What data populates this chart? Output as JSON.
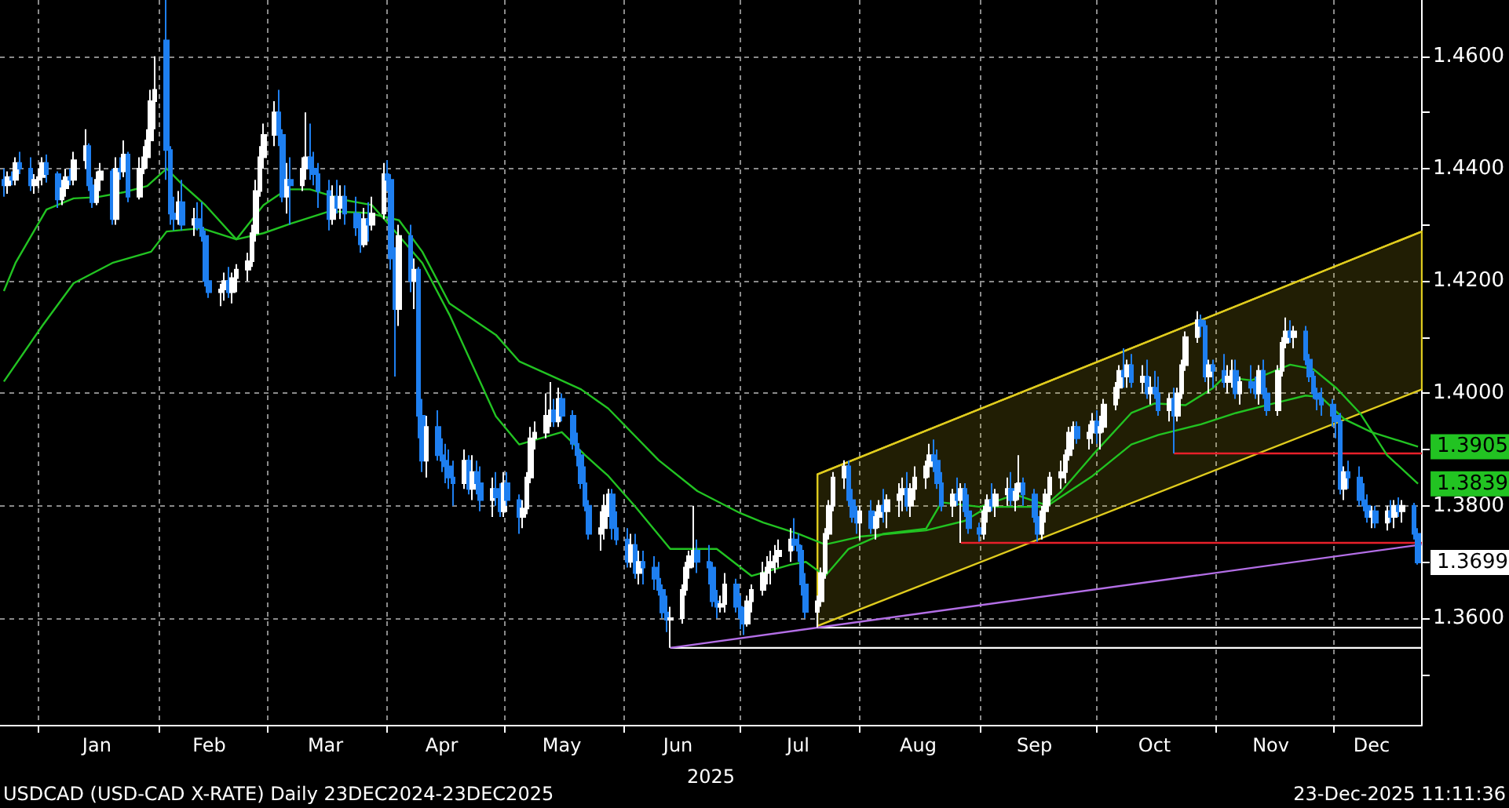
{
  "chart_data": {
    "type": "candlestick",
    "xlabel": "2025",
    "xlim": [
      "2024-12-22",
      "2025-12-24"
    ],
    "ylim": [
      1.341,
      1.47
    ],
    "grid": true,
    "marker": "none",
    "line_style": "solid",
    "xticks": [
      {
        "value": "2025-01-01",
        "label": null
      },
      {
        "value": "2025-02-01",
        "label": null
      },
      {
        "value": "2025-03-01",
        "label": null
      },
      {
        "value": "2025-04-01",
        "label": null
      },
      {
        "value": "2025-05-01",
        "label": null
      },
      {
        "value": "2025-06-01",
        "label": null
      },
      {
        "value": "2025-07-01",
        "label": null
      },
      {
        "value": "2025-08-01",
        "label": null
      },
      {
        "value": "2025-09-01",
        "label": null
      },
      {
        "value": "2025-10-01",
        "label": null
      },
      {
        "value": "2025-11-01",
        "label": null
      },
      {
        "value": "2025-12-01",
        "label": null
      },
      {
        "value": "2025-01-16",
        "label": "Jan"
      },
      {
        "value": "2025-02-14",
        "label": "Feb"
      },
      {
        "value": "2025-03-16",
        "label": "Mar"
      },
      {
        "value": "2025-04-15",
        "label": "Apr"
      },
      {
        "value": "2025-05-16",
        "label": "May"
      },
      {
        "value": "2025-06-15",
        "label": "Jun"
      },
      {
        "value": "2025-07-16",
        "label": "Jul"
      },
      {
        "value": "2025-08-16",
        "label": "Aug"
      },
      {
        "value": "2025-09-15",
        "label": "Sep"
      },
      {
        "value": "2025-10-16",
        "label": "Oct"
      },
      {
        "value": "2025-11-15",
        "label": "Nov"
      },
      {
        "value": "2025-12-11",
        "label": "Dec"
      }
    ],
    "yticks": [
      {
        "value": 1.36,
        "label": "1.3600"
      },
      {
        "value": 1.38,
        "label": "1.3800"
      },
      {
        "value": 1.4,
        "label": "1.4000"
      },
      {
        "value": 1.42,
        "label": "1.4200"
      },
      {
        "value": 1.44,
        "label": "1.4400"
      },
      {
        "value": 1.46,
        "label": "1.4600"
      },
      {
        "value": 1.35,
        "label": null
      },
      {
        "value": 1.37,
        "label": null
      },
      {
        "value": 1.39,
        "label": null
      },
      {
        "value": 1.41,
        "label": null
      },
      {
        "value": 1.43,
        "label": null
      },
      {
        "value": 1.45,
        "label": null
      }
    ],
    "annotations": [
      "USDCAD (USD-CAD X-RATE) Daily 23DEC2024-23DEC2025",
      "23-Dec-2025 11:11:36",
      {
        "text": "1.3699",
        "x": "2025-12-23",
        "y": 1.3699
      }
    ],
    "x": [
      "2024-12-23",
      "2024-12-24",
      "2024-12-25",
      "2024-12-26",
      "2024-12-27",
      "2024-12-30",
      "2024-12-31",
      "2025-01-01",
      "2025-01-02",
      "2025-01-03",
      "2025-01-06",
      "2025-01-07",
      "2025-01-08",
      "2025-01-09",
      "2025-01-10",
      "2025-01-13",
      "2025-01-14",
      "2025-01-15",
      "2025-01-16",
      "2025-01-17",
      "2025-01-20",
      "2025-01-21",
      "2025-01-22",
      "2025-01-23",
      "2025-01-24",
      "2025-01-27",
      "2025-01-28",
      "2025-01-29",
      "2025-01-30",
      "2025-01-31",
      "2025-02-03",
      "2025-02-04",
      "2025-02-05",
      "2025-02-06",
      "2025-02-07",
      "2025-02-10",
      "2025-02-11",
      "2025-02-12",
      "2025-02-13",
      "2025-02-14",
      "2025-02-17",
      "2025-02-18",
      "2025-02-19",
      "2025-02-20",
      "2025-02-21",
      "2025-02-24",
      "2025-02-25",
      "2025-02-26",
      "2025-02-27",
      "2025-02-28",
      "2025-03-03",
      "2025-03-04",
      "2025-03-05",
      "2025-03-06",
      "2025-03-07",
      "2025-03-10",
      "2025-03-11",
      "2025-03-12",
      "2025-03-13",
      "2025-03-14",
      "2025-03-17",
      "2025-03-18",
      "2025-03-19",
      "2025-03-20",
      "2025-03-21",
      "2025-03-24",
      "2025-03-25",
      "2025-03-26",
      "2025-03-27",
      "2025-03-28",
      "2025-03-31",
      "2025-04-01",
      "2025-04-02",
      "2025-04-03",
      "2025-04-04",
      "2025-04-07",
      "2025-04-08",
      "2025-04-09",
      "2025-04-10",
      "2025-04-11",
      "2025-04-14",
      "2025-04-15",
      "2025-04-16",
      "2025-04-17",
      "2025-04-18",
      "2025-04-21",
      "2025-04-22",
      "2025-04-23",
      "2025-04-24",
      "2025-04-25",
      "2025-04-28",
      "2025-04-29",
      "2025-04-30",
      "2025-05-01",
      "2025-05-02",
      "2025-05-05",
      "2025-05-06",
      "2025-05-07",
      "2025-05-08",
      "2025-05-09",
      "2025-05-12",
      "2025-05-13",
      "2025-05-14",
      "2025-05-15",
      "2025-05-16",
      "2025-05-19",
      "2025-05-20",
      "2025-05-21",
      "2025-05-22",
      "2025-05-23",
      "2025-05-26",
      "2025-05-27",
      "2025-05-28",
      "2025-05-29",
      "2025-05-30",
      "2025-06-02",
      "2025-06-03",
      "2025-06-04",
      "2025-06-05",
      "2025-06-06",
      "2025-06-09",
      "2025-06-10",
      "2025-06-11",
      "2025-06-12",
      "2025-06-13",
      "2025-06-16",
      "2025-06-17",
      "2025-06-18",
      "2025-06-19",
      "2025-06-20",
      "2025-06-23",
      "2025-06-24",
      "2025-06-25",
      "2025-06-26",
      "2025-06-27",
      "2025-06-30",
      "2025-07-01",
      "2025-07-02",
      "2025-07-03",
      "2025-07-04",
      "2025-07-07",
      "2025-07-08",
      "2025-07-09",
      "2025-07-10",
      "2025-07-11",
      "2025-07-14",
      "2025-07-15",
      "2025-07-16",
      "2025-07-17",
      "2025-07-18",
      "2025-07-21",
      "2025-07-22",
      "2025-07-23",
      "2025-07-24",
      "2025-07-25",
      "2025-07-28",
      "2025-07-29",
      "2025-07-30",
      "2025-07-31",
      "2025-08-01",
      "2025-08-04",
      "2025-08-05",
      "2025-08-06",
      "2025-08-07",
      "2025-08-08",
      "2025-08-11",
      "2025-08-12",
      "2025-08-13",
      "2025-08-14",
      "2025-08-15",
      "2025-08-18",
      "2025-08-19",
      "2025-08-20",
      "2025-08-21",
      "2025-08-22",
      "2025-08-25",
      "2025-08-26",
      "2025-08-27",
      "2025-08-28",
      "2025-08-29",
      "2025-09-01",
      "2025-09-02",
      "2025-09-03",
      "2025-09-04",
      "2025-09-05",
      "2025-09-08",
      "2025-09-09",
      "2025-09-10",
      "2025-09-11",
      "2025-09-12",
      "2025-09-15",
      "2025-09-16",
      "2025-09-17",
      "2025-09-18",
      "2025-09-19",
      "2025-09-22",
      "2025-09-23",
      "2025-09-24",
      "2025-09-25",
      "2025-09-26",
      "2025-09-29",
      "2025-09-30",
      "2025-10-01",
      "2025-10-02",
      "2025-10-03",
      "2025-10-06",
      "2025-10-07",
      "2025-10-08",
      "2025-10-09",
      "2025-10-10",
      "2025-10-13",
      "2025-10-14",
      "2025-10-15",
      "2025-10-16",
      "2025-10-17",
      "2025-10-20",
      "2025-10-21",
      "2025-10-22",
      "2025-10-23",
      "2025-10-24",
      "2025-10-27",
      "2025-10-28",
      "2025-10-29",
      "2025-10-30",
      "2025-10-31",
      "2025-11-03",
      "2025-11-04",
      "2025-11-05",
      "2025-11-06",
      "2025-11-07",
      "2025-11-10",
      "2025-11-11",
      "2025-11-12",
      "2025-11-13",
      "2025-11-14",
      "2025-11-17",
      "2025-11-18",
      "2025-11-19",
      "2025-11-20",
      "2025-11-21",
      "2025-11-24",
      "2025-11-25",
      "2025-11-26",
      "2025-11-27",
      "2025-11-28",
      "2025-12-01",
      "2025-12-02",
      "2025-12-03",
      "2025-12-04",
      "2025-12-05",
      "2025-12-08",
      "2025-12-09",
      "2025-12-10",
      "2025-12-11",
      "2025-12-12",
      "2025-12-15",
      "2025-12-16",
      "2025-12-17",
      "2025-12-18",
      "2025-12-19",
      "2025-12-22",
      "2025-12-23"
    ],
    "ohlc": [
      [
        1.438,
        1.44,
        1.435,
        1.437
      ],
      [
        1.437,
        1.4395,
        1.4355,
        1.4385
      ],
      [
        1.4385,
        1.4395,
        1.437,
        1.438
      ],
      [
        1.438,
        1.442,
        1.437,
        1.441
      ],
      [
        1.441,
        1.443,
        1.439,
        1.44
      ],
      [
        1.44,
        1.442,
        1.436,
        1.437
      ],
      [
        1.437,
        1.439,
        1.4355,
        1.438
      ],
      [
        1.438,
        1.44,
        1.4365,
        1.4385
      ],
      [
        1.4385,
        1.442,
        1.437,
        1.441
      ],
      [
        1.441,
        1.4425,
        1.4375,
        1.439
      ],
      [
        1.439,
        1.4395,
        1.433,
        1.4345
      ],
      [
        1.4345,
        1.438,
        1.4335,
        1.4365
      ],
      [
        1.4365,
        1.44,
        1.435,
        1.4385
      ],
      [
        1.4385,
        1.44,
        1.437,
        1.438
      ],
      [
        1.438,
        1.443,
        1.437,
        1.4415
      ],
      [
        1.4415,
        1.447,
        1.44,
        1.444
      ],
      [
        1.444,
        1.4445,
        1.436,
        1.437
      ],
      [
        1.437,
        1.4385,
        1.433,
        1.434
      ],
      [
        1.434,
        1.4395,
        1.4335,
        1.438
      ],
      [
        1.438,
        1.441,
        1.436,
        1.4395
      ],
      [
        1.4395,
        1.44,
        1.43,
        1.431
      ],
      [
        1.431,
        1.442,
        1.43,
        1.44
      ],
      [
        1.44,
        1.442,
        1.438,
        1.4395
      ],
      [
        1.4395,
        1.445,
        1.4385,
        1.4425
      ],
      [
        1.4425,
        1.443,
        1.434,
        1.435
      ],
      [
        1.435,
        1.442,
        1.4345,
        1.44
      ],
      [
        1.44,
        1.444,
        1.439,
        1.442
      ],
      [
        1.442,
        1.447,
        1.44,
        1.445
      ],
      [
        1.445,
        1.454,
        1.443,
        1.452
      ],
      [
        1.452,
        1.46,
        1.447,
        1.454
      ],
      [
        1.4628,
        1.47,
        1.438,
        1.4433
      ],
      [
        1.4433,
        1.444,
        1.43,
        1.432
      ],
      [
        1.432,
        1.435,
        1.429,
        1.431
      ],
      [
        1.431,
        1.436,
        1.43,
        1.434
      ],
      [
        1.434,
        1.438,
        1.429,
        1.43
      ],
      [
        1.43,
        1.433,
        1.428,
        1.431
      ],
      [
        1.431,
        1.434,
        1.429,
        1.4295
      ],
      [
        1.4295,
        1.434,
        1.427,
        1.428
      ],
      [
        1.428,
        1.429,
        1.419,
        1.42
      ],
      [
        1.42,
        1.422,
        1.417,
        1.418
      ],
      [
        1.418,
        1.4195,
        1.4155,
        1.4185
      ],
      [
        1.4185,
        1.4215,
        1.4165,
        1.42
      ],
      [
        1.42,
        1.4225,
        1.417,
        1.418
      ],
      [
        1.418,
        1.4215,
        1.416,
        1.4205
      ],
      [
        1.4205,
        1.423,
        1.418,
        1.422
      ],
      [
        1.422,
        1.425,
        1.42,
        1.4235
      ],
      [
        1.4235,
        1.43,
        1.4225,
        1.4285
      ],
      [
        1.4285,
        1.438,
        1.427,
        1.436
      ],
      [
        1.436,
        1.444,
        1.435,
        1.442
      ],
      [
        1.442,
        1.448,
        1.44,
        1.446
      ],
      [
        1.446,
        1.452,
        1.444,
        1.45
      ],
      [
        1.45,
        1.454,
        1.444,
        1.446
      ],
      [
        1.446,
        1.447,
        1.434,
        1.435
      ],
      [
        1.435,
        1.441,
        1.432,
        1.438
      ],
      [
        1.438,
        1.442,
        1.43,
        1.437
      ],
      [
        1.437,
        1.442,
        1.436,
        1.44
      ],
      [
        1.44,
        1.45,
        1.438,
        1.442
      ],
      [
        1.442,
        1.448,
        1.438,
        1.44
      ],
      [
        1.44,
        1.443,
        1.437,
        1.439
      ],
      [
        1.439,
        1.441,
        1.433,
        1.436
      ],
      [
        1.436,
        1.438,
        1.429,
        1.431
      ],
      [
        1.431,
        1.437,
        1.43,
        1.435
      ],
      [
        1.435,
        1.438,
        1.432,
        1.433
      ],
      [
        1.433,
        1.437,
        1.431,
        1.435
      ],
      [
        1.435,
        1.437,
        1.43,
        1.432
      ],
      [
        1.432,
        1.435,
        1.428,
        1.4295
      ],
      [
        1.4295,
        1.432,
        1.425,
        1.4265
      ],
      [
        1.4265,
        1.433,
        1.426,
        1.431
      ],
      [
        1.431,
        1.434,
        1.427,
        1.43
      ],
      [
        1.43,
        1.435,
        1.429,
        1.432
      ],
      [
        1.432,
        1.441,
        1.431,
        1.439
      ],
      [
        1.439,
        1.4415,
        1.436,
        1.438
      ],
      [
        1.438,
        1.439,
        1.422,
        1.424
      ],
      [
        1.424,
        1.426,
        1.403,
        1.415
      ],
      [
        1.415,
        1.43,
        1.412,
        1.428
      ],
      [
        1.428,
        1.43,
        1.418,
        1.42
      ],
      [
        1.42,
        1.424,
        1.415,
        1.422
      ],
      [
        1.422,
        1.4225,
        1.392,
        1.396
      ],
      [
        1.396,
        1.399,
        1.386,
        1.388
      ],
      [
        1.388,
        1.396,
        1.385,
        1.394
      ],
      [
        1.394,
        1.397,
        1.388,
        1.389
      ],
      [
        1.389,
        1.392,
        1.386,
        1.388
      ],
      [
        1.388,
        1.391,
        1.384,
        1.387
      ],
      [
        1.387,
        1.39,
        1.383,
        1.385
      ],
      [
        1.385,
        1.388,
        1.38,
        1.384
      ],
      [
        1.384,
        1.39,
        1.383,
        1.388
      ],
      [
        1.388,
        1.389,
        1.382,
        1.383
      ],
      [
        1.383,
        1.389,
        1.381,
        1.386
      ],
      [
        1.386,
        1.388,
        1.382,
        1.384
      ],
      [
        1.384,
        1.387,
        1.379,
        1.381
      ],
      [
        1.381,
        1.385,
        1.378,
        1.383
      ],
      [
        1.383,
        1.386,
        1.38,
        1.3815
      ],
      [
        1.3815,
        1.384,
        1.378,
        1.379
      ],
      [
        1.379,
        1.386,
        1.378,
        1.384
      ],
      [
        1.384,
        1.386,
        1.38,
        1.381
      ],
      [
        1.381,
        1.382,
        1.375,
        1.378
      ],
      [
        1.378,
        1.381,
        1.376,
        1.3795
      ],
      [
        1.3795,
        1.386,
        1.3785,
        1.385
      ],
      [
        1.385,
        1.394,
        1.384,
        1.392
      ],
      [
        1.392,
        1.395,
        1.39,
        1.393
      ],
      [
        1.393,
        1.4,
        1.392,
        1.396
      ],
      [
        1.396,
        1.402,
        1.394,
        1.397
      ],
      [
        1.397,
        1.399,
        1.394,
        1.395
      ],
      [
        1.395,
        1.401,
        1.394,
        1.399
      ],
      [
        1.399,
        1.4,
        1.395,
        1.396
      ],
      [
        1.396,
        1.397,
        1.39,
        1.391
      ],
      [
        1.391,
        1.393,
        1.387,
        1.389
      ],
      [
        1.389,
        1.39,
        1.383,
        1.384
      ],
      [
        1.384,
        1.387,
        1.379,
        1.38
      ],
      [
        1.38,
        1.381,
        1.374,
        1.375
      ],
      [
        1.375,
        1.379,
        1.372,
        1.376
      ],
      [
        1.376,
        1.382,
        1.374,
        1.38
      ],
      [
        1.38,
        1.383,
        1.378,
        1.382
      ],
      [
        1.382,
        1.383,
        1.374,
        1.376
      ],
      [
        1.376,
        1.379,
        1.373,
        1.374
      ],
      [
        1.374,
        1.376,
        1.369,
        1.37
      ],
      [
        1.37,
        1.375,
        1.369,
        1.373
      ],
      [
        1.373,
        1.375,
        1.367,
        1.368
      ],
      [
        1.368,
        1.372,
        1.366,
        1.37
      ],
      [
        1.37,
        1.372,
        1.366,
        1.369
      ],
      [
        1.369,
        1.371,
        1.365,
        1.367
      ],
      [
        1.367,
        1.37,
        1.364,
        1.365
      ],
      [
        1.365,
        1.366,
        1.36,
        1.361
      ],
      [
        1.361,
        1.364,
        1.3575,
        1.3597
      ],
      [
        1.3597,
        1.362,
        1.3547,
        1.36
      ],
      [
        1.36,
        1.366,
        1.359,
        1.365
      ],
      [
        1.365,
        1.37,
        1.364,
        1.369
      ],
      [
        1.369,
        1.372,
        1.367,
        1.371
      ],
      [
        1.371,
        1.38,
        1.369,
        1.372
      ],
      [
        1.372,
        1.374,
        1.368,
        1.37
      ],
      [
        1.37,
        1.373,
        1.366,
        1.369
      ],
      [
        1.369,
        1.37,
        1.362,
        1.363
      ],
      [
        1.363,
        1.365,
        1.36,
        1.362
      ],
      [
        1.362,
        1.364,
        1.361,
        1.3625
      ],
      [
        1.3625,
        1.368,
        1.361,
        1.366
      ],
      [
        1.366,
        1.367,
        1.361,
        1.362
      ],
      [
        1.362,
        1.364,
        1.358,
        1.36
      ],
      [
        1.36,
        1.362,
        1.357,
        1.359
      ],
      [
        1.359,
        1.364,
        1.3585,
        1.363
      ],
      [
        1.363,
        1.366,
        1.361,
        1.365
      ],
      [
        1.365,
        1.37,
        1.364,
        1.368
      ],
      [
        1.368,
        1.371,
        1.366,
        1.369
      ],
      [
        1.369,
        1.372,
        1.366,
        1.37
      ],
      [
        1.37,
        1.373,
        1.368,
        1.371
      ],
      [
        1.371,
        1.374,
        1.369,
        1.372
      ],
      [
        1.372,
        1.376,
        1.37,
        1.374
      ],
      [
        1.374,
        1.3778,
        1.372,
        1.373
      ],
      [
        1.373,
        1.375,
        1.37,
        1.372
      ],
      [
        1.372,
        1.373,
        1.364,
        1.366
      ],
      [
        1.366,
        1.368,
        1.36,
        1.3611
      ],
      [
        1.3611,
        1.364,
        1.3583,
        1.363
      ],
      [
        1.363,
        1.369,
        1.362,
        1.368
      ],
      [
        1.368,
        1.376,
        1.367,
        1.375
      ],
      [
        1.375,
        1.381,
        1.374,
        1.38
      ],
      [
        1.38,
        1.386,
        1.379,
        1.385
      ],
      [
        1.385,
        1.3881,
        1.383,
        1.387
      ],
      [
        1.387,
        1.388,
        1.38,
        1.381
      ],
      [
        1.381,
        1.383,
        1.377,
        1.378
      ],
      [
        1.378,
        1.38,
        1.375,
        1.377
      ],
      [
        1.377,
        1.38,
        1.374,
        1.379
      ],
      [
        1.379,
        1.381,
        1.375,
        1.376
      ],
      [
        1.376,
        1.379,
        1.374,
        1.378
      ],
      [
        1.378,
        1.381,
        1.376,
        1.38
      ],
      [
        1.38,
        1.383,
        1.377,
        1.379
      ],
      [
        1.379,
        1.382,
        1.376,
        1.381
      ],
      [
        1.381,
        1.384,
        1.378,
        1.382
      ],
      [
        1.382,
        1.385,
        1.379,
        1.383
      ],
      [
        1.383,
        1.386,
        1.379,
        1.38
      ],
      [
        1.38,
        1.384,
        1.378,
        1.383
      ],
      [
        1.383,
        1.387,
        1.381,
        1.385
      ],
      [
        1.385,
        1.388,
        1.383,
        1.387
      ],
      [
        1.387,
        1.391,
        1.385,
        1.389
      ],
      [
        1.389,
        1.3918,
        1.386,
        1.388
      ],
      [
        1.388,
        1.39,
        1.383,
        1.384
      ],
      [
        1.384,
        1.386,
        1.379,
        1.38
      ],
      [
        1.38,
        1.383,
        1.378,
        1.382
      ],
      [
        1.382,
        1.385,
        1.38,
        1.381
      ],
      [
        1.381,
        1.384,
        1.3734,
        1.383
      ],
      [
        1.383,
        1.384,
        1.378,
        1.379
      ],
      [
        1.379,
        1.382,
        1.375,
        1.376
      ],
      [
        1.376,
        1.377,
        1.3736,
        1.375
      ],
      [
        1.375,
        1.38,
        1.374,
        1.379
      ],
      [
        1.379,
        1.382,
        1.377,
        1.381
      ],
      [
        1.381,
        1.384,
        1.379,
        1.38
      ],
      [
        1.38,
        1.383,
        1.378,
        1.382
      ],
      [
        1.382,
        1.385,
        1.38,
        1.383
      ],
      [
        1.383,
        1.386,
        1.38,
        1.381
      ],
      [
        1.381,
        1.384,
        1.379,
        1.3825
      ],
      [
        1.3825,
        1.389,
        1.381,
        1.384
      ],
      [
        1.384,
        1.385,
        1.38,
        1.382
      ],
      [
        1.382,
        1.383,
        1.377,
        1.378
      ],
      [
        1.378,
        1.379,
        1.3736,
        1.375
      ],
      [
        1.375,
        1.38,
        1.374,
        1.379
      ],
      [
        1.379,
        1.383,
        1.377,
        1.382
      ],
      [
        1.382,
        1.386,
        1.38,
        1.385
      ],
      [
        1.385,
        1.388,
        1.383,
        1.386
      ],
      [
        1.386,
        1.39,
        1.384,
        1.389
      ],
      [
        1.389,
        1.394,
        1.388,
        1.393
      ],
      [
        1.393,
        1.395,
        1.39,
        1.394
      ],
      [
        1.394,
        1.395,
        1.391,
        1.392
      ],
      [
        1.392,
        1.3945,
        1.39,
        1.393
      ],
      [
        1.393,
        1.3965,
        1.391,
        1.395
      ],
      [
        1.395,
        1.397,
        1.391,
        1.393
      ],
      [
        1.393,
        1.396,
        1.39,
        1.394
      ],
      [
        1.394,
        1.399,
        1.393,
        1.398
      ],
      [
        1.398,
        1.402,
        1.397,
        1.401
      ],
      [
        1.401,
        1.405,
        1.399,
        1.404
      ],
      [
        1.404,
        1.408,
        1.401,
        1.403
      ],
      [
        1.403,
        1.406,
        1.401,
        1.405
      ],
      [
        1.405,
        1.407,
        1.401,
        1.402
      ],
      [
        1.402,
        1.405,
        1.4,
        1.403
      ],
      [
        1.403,
        1.406,
        1.399,
        1.4
      ],
      [
        1.4,
        1.403,
        1.398,
        1.401
      ],
      [
        1.401,
        1.404,
        1.399,
        1.4
      ],
      [
        1.4,
        1.403,
        1.396,
        1.397
      ],
      [
        1.397,
        1.4,
        1.395,
        1.399
      ],
      [
        1.399,
        1.401,
        1.3893,
        1.396
      ],
      [
        1.396,
        1.401,
        1.395,
        1.4
      ],
      [
        1.4,
        1.406,
        1.399,
        1.405
      ],
      [
        1.405,
        1.411,
        1.404,
        1.41
      ],
      [
        1.41,
        1.4146,
        1.409,
        1.413
      ],
      [
        1.413,
        1.414,
        1.41,
        1.412
      ],
      [
        1.412,
        1.413,
        1.402,
        1.403
      ],
      [
        1.403,
        1.406,
        1.4,
        1.405
      ],
      [
        1.405,
        1.406,
        1.401,
        1.404
      ],
      [
        1.404,
        1.407,
        1.401,
        1.402
      ],
      [
        1.402,
        1.405,
        1.4,
        1.403
      ],
      [
        1.403,
        1.406,
        1.401,
        1.404
      ],
      [
        1.404,
        1.406,
        1.399,
        1.4
      ],
      [
        1.4,
        1.403,
        1.398,
        1.402
      ],
      [
        1.402,
        1.405,
        1.4,
        1.401
      ],
      [
        1.401,
        1.403,
        1.399,
        1.4
      ],
      [
        1.4,
        1.405,
        1.398,
        1.404
      ],
      [
        1.404,
        1.406,
        1.399,
        1.4
      ],
      [
        1.4,
        1.401,
        1.396,
        1.397
      ],
      [
        1.397,
        1.405,
        1.396,
        1.404
      ],
      [
        1.404,
        1.41,
        1.403,
        1.409
      ],
      [
        1.409,
        1.4135,
        1.408,
        1.411
      ],
      [
        1.411,
        1.413,
        1.409,
        1.41
      ],
      [
        1.41,
        1.412,
        1.408,
        1.411
      ],
      [
        1.411,
        1.412,
        1.405,
        1.406
      ],
      [
        1.406,
        1.407,
        1.402,
        1.403
      ],
      [
        1.403,
        1.404,
        1.399,
        1.4
      ],
      [
        1.4,
        1.401,
        1.397,
        1.399
      ],
      [
        1.399,
        1.401,
        1.396,
        1.398
      ],
      [
        1.398,
        1.399,
        1.394,
        1.396
      ],
      [
        1.396,
        1.397,
        1.392,
        1.395
      ],
      [
        1.395,
        1.3965,
        1.382,
        1.383
      ],
      [
        1.383,
        1.387,
        1.381,
        1.386
      ],
      [
        1.386,
        1.388,
        1.383,
        1.385
      ],
      [
        1.385,
        1.387,
        1.38,
        1.381
      ],
      [
        1.381,
        1.384,
        1.379,
        1.38
      ],
      [
        1.38,
        1.382,
        1.377,
        1.378
      ],
      [
        1.378,
        1.38,
        1.376,
        1.379
      ],
      [
        1.379,
        1.38,
        1.376,
        1.377
      ],
      [
        1.377,
        1.38,
        1.3756,
        1.379
      ],
      [
        1.379,
        1.381,
        1.377,
        1.378
      ],
      [
        1.378,
        1.381,
        1.376,
        1.38
      ],
      [
        1.38,
        1.3815,
        1.378,
        1.379
      ],
      [
        1.379,
        1.381,
        1.377,
        1.38
      ],
      [
        1.38,
        1.3805,
        1.374,
        1.375
      ],
      [
        1.375,
        1.376,
        1.3695,
        1.3699
      ]
    ],
    "series": [
      {
        "type": "line",
        "color": "#e0cc1e",
        "x": [
          "2025-07-21",
          "2025-12-24"
        ],
        "values": [
          1.3856,
          1.4288
        ],
        "lower": [
          1.3586,
          1.4007
        ],
        "upper": [
          1.3856,
          1.4288
        ]
      },
      {
        "type": "line",
        "color": "#ffffff",
        "x": [
          "2025-06-13",
          "2025-12-24"
        ],
        "values": [
          1.3547,
          1.3547
        ]
      },
      {
        "type": "line",
        "color": "#ffffff",
        "x": [
          "2025-07-21",
          "2025-12-24"
        ],
        "values": [
          1.3583,
          1.3583
        ]
      },
      {
        "type": "line",
        "color": "#b36ee6",
        "x": [
          "2025-06-13",
          "2025-12-24"
        ],
        "values": [
          1.3547,
          1.3731
        ]
      },
      {
        "type": "line",
        "color": "#e8202a",
        "x": [
          "2025-08-27",
          "2025-12-24"
        ],
        "values": [
          1.3734,
          1.3734
        ]
      },
      {
        "type": "line",
        "color": "#e8202a",
        "x": [
          "2025-10-21",
          "2025-12-24"
        ],
        "values": [
          1.3893,
          1.3893
        ]
      },
      {
        "type": "line",
        "color": "#22c322",
        "x": [
          "2024-12-23",
          "2024-12-26",
          "2025-01-03",
          "2025-01-10",
          "2025-01-16",
          "2025-01-23",
          "2025-01-29",
          "2025-02-03",
          "2025-02-07",
          "2025-02-13",
          "2025-02-21",
          "2025-02-28",
          "2025-03-06",
          "2025-03-12",
          "2025-03-21",
          "2025-03-28",
          "2025-04-03",
          "2025-04-10",
          "2025-04-17",
          "2025-04-29",
          "2025-05-05",
          "2025-05-16",
          "2025-05-22",
          "2025-05-28",
          "2025-06-04",
          "2025-06-13",
          "2025-06-25",
          "2025-07-04",
          "2025-07-14",
          "2025-07-18",
          "2025-07-23",
          "2025-07-29",
          "2025-08-07",
          "2025-08-18",
          "2025-08-22",
          "2025-09-01",
          "2025-09-10",
          "2025-09-18",
          "2025-09-22",
          "2025-09-30",
          "2025-10-10",
          "2025-10-16",
          "2025-10-24",
          "2025-10-31",
          "2025-11-03",
          "2025-11-10",
          "2025-11-20",
          "2025-11-26",
          "2025-12-02",
          "2025-12-08",
          "2025-12-15",
          "2025-12-23"
        ],
        "values": [
          1.4182,
          1.4232,
          1.4327,
          1.4347,
          1.4349,
          1.4358,
          1.4369,
          1.44,
          1.4372,
          1.4335,
          1.4274,
          1.4335,
          1.4363,
          1.4363,
          1.4344,
          1.4335,
          1.4288,
          1.4232,
          1.414,
          1.3959,
          1.3909,
          1.3931,
          1.389,
          1.3853,
          1.3798,
          1.3723,
          1.3723,
          1.3675,
          1.3695,
          1.37,
          1.3675,
          1.3723,
          1.375,
          1.3759,
          1.3806,
          1.3798,
          1.382,
          1.3801,
          1.3826,
          1.389,
          1.3965,
          1.3982,
          1.3979,
          1.4009,
          1.4029,
          1.4023,
          1.4051,
          1.4043,
          1.4009,
          1.3965,
          1.389,
          1.3839
        ],
        "value_labels": [
          null,
          null,
          null,
          null,
          null,
          null,
          null,
          null,
          null,
          null,
          null,
          null,
          null,
          null,
          null,
          null,
          null,
          null,
          null,
          null,
          null,
          null,
          null,
          null,
          null,
          null,
          null,
          null,
          null,
          null,
          null,
          null,
          null,
          null,
          null,
          null,
          null,
          null,
          null,
          null,
          null,
          null,
          null,
          null,
          null,
          null,
          null,
          null,
          null,
          null,
          null,
          "1.3839"
        ]
      },
      {
        "type": "line",
        "color": "#22c322",
        "x": [
          "2024-12-23",
          "2025-01-02",
          "2025-01-10",
          "2025-01-20",
          "2025-01-30",
          "2025-02-03",
          "2025-02-12",
          "2025-02-21",
          "2025-02-28",
          "2025-03-07",
          "2025-03-17",
          "2025-03-27",
          "2025-04-04",
          "2025-04-10",
          "2025-04-17",
          "2025-04-29",
          "2025-05-05",
          "2025-05-14",
          "2025-05-21",
          "2025-05-28",
          "2025-06-10",
          "2025-06-20",
          "2025-07-01",
          "2025-07-07",
          "2025-07-16",
          "2025-07-23",
          "2025-08-01",
          "2025-08-18",
          "2025-08-28",
          "2025-09-03",
          "2025-09-18",
          "2025-09-30",
          "2025-10-10",
          "2025-10-17",
          "2025-10-28",
          "2025-11-06",
          "2025-11-14",
          "2025-11-24",
          "2025-11-28",
          "2025-12-04",
          "2025-12-11",
          "2025-12-23"
        ],
        "values": [
          1.4021,
          1.4121,
          1.4196,
          1.4232,
          1.4252,
          1.4288,
          1.4294,
          1.4274,
          1.4285,
          1.4302,
          1.4324,
          1.4321,
          1.4308,
          1.4252,
          1.416,
          1.4104,
          1.4057,
          1.4029,
          1.4007,
          1.3973,
          1.3881,
          1.3826,
          1.3787,
          1.377,
          1.375,
          1.3731,
          1.3745,
          1.3756,
          1.3773,
          1.3798,
          1.3798,
          1.3853,
          1.3909,
          1.3926,
          1.3945,
          1.3965,
          1.3979,
          1.3996,
          1.3993,
          1.3954,
          1.3931,
          1.3905
        ],
        "value_labels": [
          null,
          null,
          null,
          null,
          null,
          null,
          null,
          null,
          null,
          null,
          null,
          null,
          null,
          null,
          null,
          null,
          null,
          null,
          null,
          null,
          null,
          null,
          null,
          null,
          null,
          null,
          null,
          null,
          null,
          null,
          null,
          null,
          null,
          null,
          null,
          null,
          null,
          null,
          null,
          null,
          null,
          "1.3905"
        ]
      }
    ]
  }
}
